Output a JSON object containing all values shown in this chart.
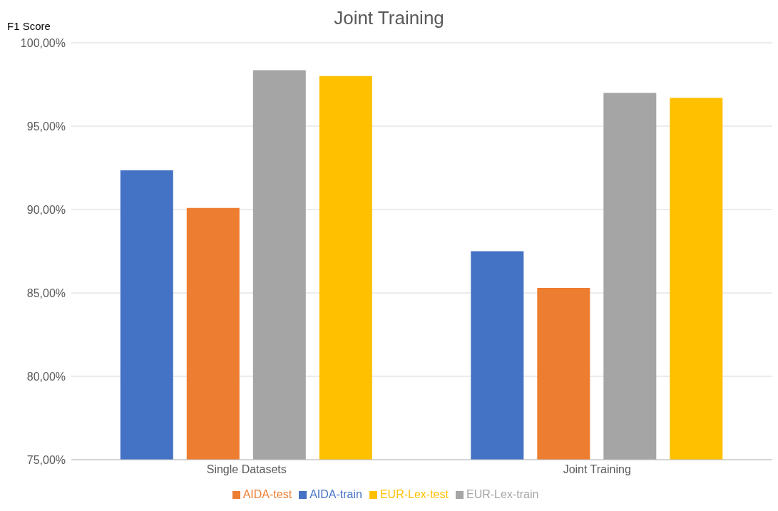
{
  "chart_data": {
    "type": "bar",
    "title": "Joint Training",
    "ylabel": "F1 Score",
    "categories": [
      "Single Datasets",
      "Joint Training"
    ],
    "series": [
      {
        "name": "AIDA-train",
        "color": "#4472c4",
        "values": [
          92.35,
          87.5
        ]
      },
      {
        "name": "AIDA-test",
        "color": "#ed7d31",
        "values": [
          90.1,
          85.3
        ]
      },
      {
        "name": "EUR-Lex-train",
        "color": "#a5a5a5",
        "values": [
          98.35,
          97.0
        ]
      },
      {
        "name": "EUR-Lex-test",
        "color": "#ffc000",
        "values": [
          98.0,
          96.7
        ]
      }
    ],
    "ylim": [
      75,
      100
    ],
    "yticks": [
      {
        "value": 75,
        "label": "75,00%"
      },
      {
        "value": 80,
        "label": "80,00%"
      },
      {
        "value": 85,
        "label": "85,00%"
      },
      {
        "value": 90,
        "label": "90,00%"
      },
      {
        "value": 95,
        "label": "95,00%"
      },
      {
        "value": 100,
        "label": "100,00%"
      }
    ],
    "grid": "y",
    "legend": "bottom"
  }
}
